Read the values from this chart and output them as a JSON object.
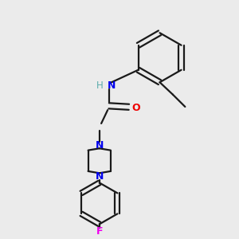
{
  "bg_color": "#ebebeb",
  "bond_color": "#1a1a1a",
  "N_color": "#0000ee",
  "O_color": "#ee0000",
  "F_color": "#ee00ee",
  "H_color": "#5aacac",
  "line_width": 1.6,
  "figsize": [
    3.0,
    3.0
  ],
  "dpi": 100,
  "xlim": [
    0,
    1
  ],
  "ylim": [
    0,
    1
  ]
}
